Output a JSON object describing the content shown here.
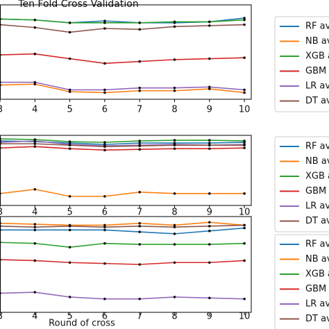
{
  "chart_data": [
    {
      "type": "line",
      "title": "Ten Fold Cross Validation",
      "categories": [
        "3",
        "4",
        "5",
        "6",
        "7",
        "8",
        "9",
        "10"
      ],
      "ylim": [
        0,
        100
      ],
      "series": [
        {
          "name": "RF av",
          "color": "#1f77b4",
          "values": [
            85,
            84,
            81,
            83,
            81,
            81,
            82,
            86
          ]
        },
        {
          "name": "NB av",
          "color": "#ff7f0e",
          "values": [
            15,
            16,
            8,
            7,
            9,
            9,
            11,
            7
          ]
        },
        {
          "name": "XGB a",
          "color": "#2ca02c",
          "values": [
            85,
            84,
            81,
            81,
            81,
            82,
            82,
            84
          ]
        },
        {
          "name": "GBM a",
          "color": "#d62728",
          "values": [
            47,
            48,
            43,
            38,
            40,
            42,
            43,
            44
          ]
        },
        {
          "name": "LR av",
          "color": "#9467bd",
          "values": [
            18,
            18,
            10,
            10,
            12,
            12,
            13,
            10
          ]
        },
        {
          "name": "DT av",
          "color": "#8c564b",
          "values": [
            79,
            76,
            71,
            75,
            74,
            77,
            78,
            79
          ]
        }
      ]
    },
    {
      "type": "line",
      "categories": [
        "3",
        "4",
        "5",
        "6",
        "7",
        "8",
        "9",
        "10"
      ],
      "ylim": [
        0,
        100
      ],
      "series": [
        {
          "name": "RF av",
          "color": "#1f77b4",
          "values": [
            92,
            91,
            89,
            87,
            89,
            89,
            89,
            90
          ]
        },
        {
          "name": "NB av",
          "color": "#ff7f0e",
          "values": [
            17,
            23,
            13,
            13,
            19,
            17,
            17,
            17
          ]
        },
        {
          "name": "XGB a",
          "color": "#2ca02c",
          "values": [
            95,
            94,
            91,
            90,
            92,
            93,
            93,
            92
          ]
        },
        {
          "name": "GBM a",
          "color": "#d62728",
          "values": [
            82,
            84,
            81,
            79,
            80,
            81,
            81,
            82
          ]
        },
        {
          "name": "LR av",
          "color": "#9467bd",
          "values": [
            90,
            92,
            87,
            85,
            86,
            87,
            86,
            87
          ]
        },
        {
          "name": "DT av",
          "color": "#8c564b",
          "values": [
            88,
            88,
            86,
            84,
            85,
            86,
            86,
            86
          ]
        }
      ]
    },
    {
      "type": "line",
      "xlabel": "Round of cross",
      "categories": [
        "3",
        "4",
        "5",
        "6",
        "7",
        "8",
        "9",
        "10"
      ],
      "ylim": [
        0,
        100
      ],
      "series": [
        {
          "name": "RF av",
          "color": "#1f77b4",
          "values": [
            86,
            86,
            86,
            86,
            84,
            82,
            85,
            88
          ]
        },
        {
          "name": "NB av",
          "color": "#ff7f0e",
          "values": [
            93,
            92,
            91,
            91,
            93,
            91,
            94,
            91
          ]
        },
        {
          "name": "XGB a",
          "color": "#2ca02c",
          "values": [
            73,
            72,
            68,
            72,
            71,
            71,
            71,
            72
          ]
        },
        {
          "name": "GBM a",
          "color": "#d62728",
          "values": [
            55,
            54,
            52,
            51,
            50,
            52,
            52,
            54
          ]
        },
        {
          "name": "LR av",
          "color": "#9467bd",
          "values": [
            20,
            21,
            16,
            14,
            14,
            16,
            15,
            14
          ]
        },
        {
          "name": "DT av",
          "color": "#8c564b",
          "values": [
            90,
            89,
            90,
            89,
            90,
            89,
            90,
            91
          ]
        }
      ]
    }
  ]
}
